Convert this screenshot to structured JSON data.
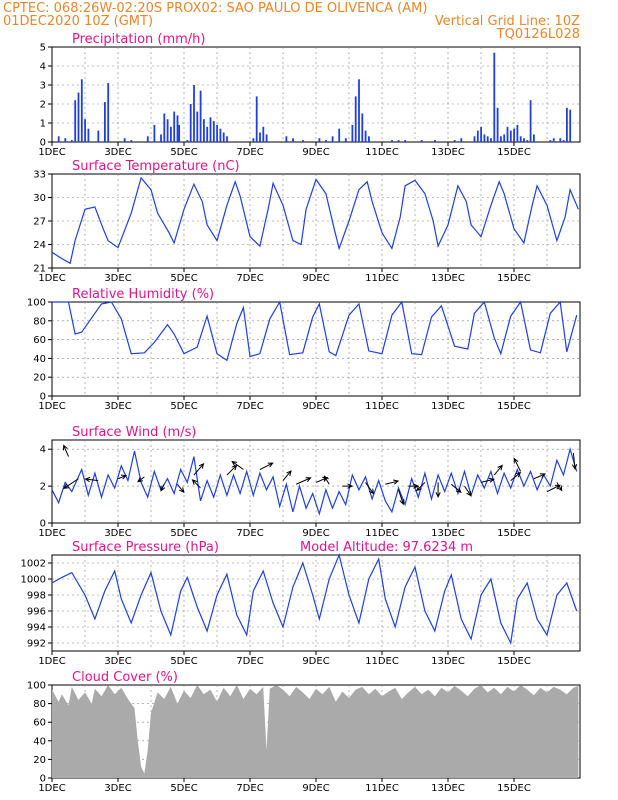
{
  "header": {
    "line1_left": "CPTEC:   068:26W-02:20S   PROX02: SAO PAULO DE OLIVENCA (AM)",
    "line2_left": "01DEC2020 10Z (GMT)",
    "line2_right": "Vertical Grid Line: 10Z",
    "line3_right": "TQ0126L028"
  },
  "colors": {
    "header": "#e8862a",
    "title": "#e0148c",
    "series": "#1f3fe0",
    "cloud": "#aaaaaa",
    "wind_arrow": "#000000"
  },
  "x_tick_labels": [
    "1DEC",
    "3DEC",
    "5DEC",
    "7DEC",
    "9DEC",
    "11DEC",
    "13DEC",
    "15DEC"
  ],
  "chart_data": [
    {
      "type": "bar",
      "title": "Precipitation (mm/h)",
      "ylim": [
        0,
        5
      ],
      "yticks": [
        0,
        1,
        2,
        3,
        4,
        5
      ],
      "x": [
        0.2,
        0.4,
        0.6,
        0.7,
        0.8,
        0.9,
        1.0,
        1.1,
        1.4,
        1.6,
        1.7,
        2.2,
        2.4,
        2.9,
        3.1,
        3.3,
        3.4,
        3.5,
        3.6,
        3.7,
        3.8,
        3.85,
        4.1,
        4.2,
        4.3,
        4.4,
        4.5,
        4.6,
        4.7,
        4.8,
        4.9,
        5.0,
        5.1,
        5.2,
        5.3,
        6.1,
        6.2,
        6.3,
        6.4,
        6.5,
        7.1,
        7.3,
        7.6,
        8.1,
        8.3,
        8.5,
        8.7,
        8.9,
        9.1,
        9.2,
        9.3,
        9.4,
        9.5,
        9.6,
        10.3,
        10.5,
        10.7,
        11.2,
        11.6,
        12.2,
        12.4,
        12.8,
        12.9,
        13.0,
        13.1,
        13.2,
        13.3,
        13.4,
        13.5,
        13.6,
        13.7,
        13.8,
        13.9,
        14.0,
        14.1,
        14.2,
        14.3,
        14.4,
        14.5,
        14.6,
        15.1,
        15.2,
        15.4,
        15.5,
        15.6,
        15.7
      ],
      "values": [
        0.3,
        0.2,
        0.1,
        2.2,
        2.6,
        3.3,
        1.2,
        0.7,
        0.6,
        2.1,
        3.1,
        0.2,
        0.1,
        0.3,
        0.9,
        0.4,
        1.5,
        1.2,
        0.8,
        1.6,
        1.4,
        0.9,
        0.1,
        2.0,
        3.0,
        1.6,
        2.7,
        1.2,
        0.8,
        1.3,
        1.1,
        0.9,
        0.7,
        0.5,
        0.3,
        0.2,
        2.4,
        0.5,
        0.8,
        0.4,
        0.3,
        0.2,
        0.1,
        0.2,
        0.1,
        0.3,
        0.7,
        0.2,
        0.9,
        2.4,
        3.3,
        1.5,
        0.6,
        0.3,
        0.1,
        0.1,
        0.1,
        0.1,
        0.1,
        0.1,
        0.2,
        0.3,
        0.6,
        0.8,
        0.4,
        0.3,
        0.2,
        4.7,
        1.8,
        0.3,
        0.4,
        0.8,
        0.6,
        0.7,
        0.9,
        0.3,
        0.2,
        0.1,
        2.2,
        0.4,
        0.1,
        0.2,
        0.2,
        0.1,
        1.8,
        1.7
      ]
    },
    {
      "type": "line",
      "title": "Surface Temperature (nC)",
      "ylim": [
        21,
        33
      ],
      "yticks": [
        21,
        24,
        27,
        30,
        33
      ],
      "x": [
        0.0,
        0.3,
        0.55,
        0.7,
        1.0,
        1.3,
        1.55,
        1.7,
        2.0,
        2.4,
        2.7,
        3.0,
        3.2,
        3.55,
        3.7,
        4.0,
        4.3,
        4.55,
        4.7,
        5.0,
        5.3,
        5.55,
        5.7,
        6.0,
        6.3,
        6.55,
        6.7,
        7.0,
        7.3,
        7.55,
        7.7,
        8.0,
        8.3,
        8.55,
        8.7,
        9.0,
        9.3,
        9.55,
        9.7,
        10.0,
        10.3,
        10.55,
        10.7,
        11.0,
        11.3,
        11.55,
        11.7,
        12.0,
        12.3,
        12.55,
        12.7,
        13.0,
        13.3,
        13.55,
        13.7,
        14.0,
        14.3,
        14.55,
        14.7,
        15.0,
        15.3,
        15.55,
        15.7,
        15.95
      ],
      "values": [
        23.0,
        22.2,
        21.6,
        24.5,
        28.5,
        28.8,
        26.0,
        24.5,
        23.6,
        28.0,
        32.5,
        31.0,
        28.0,
        25.5,
        24.2,
        28.5,
        31.7,
        29.5,
        26.5,
        24.5,
        29.0,
        32.0,
        30.2,
        25.0,
        23.8,
        28.5,
        31.8,
        29.0,
        24.5,
        24.0,
        28.5,
        32.3,
        30.5,
        26.0,
        23.5,
        27.0,
        31.0,
        32.0,
        29.5,
        25.5,
        23.5,
        27.5,
        31.5,
        32.2,
        30.5,
        27.0,
        23.8,
        26.5,
        31.5,
        29.5,
        26.5,
        25.0,
        29.0,
        32.0,
        30.5,
        26.0,
        24.2,
        29.0,
        31.5,
        29.0,
        24.5,
        27.5,
        31.0,
        28.5
      ]
    },
    {
      "type": "line",
      "title": "Relative Humidity (%)",
      "ylim": [
        0,
        100
      ],
      "yticks": [
        0,
        20,
        40,
        60,
        80,
        100
      ],
      "x": [
        0.0,
        0.5,
        0.7,
        0.9,
        1.1,
        1.5,
        1.8,
        2.1,
        2.4,
        2.8,
        3.1,
        3.5,
        3.7,
        4.0,
        4.4,
        4.7,
        5.0,
        5.3,
        5.6,
        5.8,
        6.0,
        6.3,
        6.6,
        6.9,
        7.2,
        7.6,
        7.9,
        8.1,
        8.4,
        8.6,
        9.0,
        9.3,
        9.6,
        10.0,
        10.3,
        10.6,
        10.9,
        11.2,
        11.5,
        11.8,
        12.2,
        12.6,
        12.8,
        13.1,
        13.4,
        13.6,
        13.9,
        14.2,
        14.5,
        14.8,
        15.1,
        15.4,
        15.6,
        15.9
      ],
      "values": [
        100,
        100,
        66,
        68,
        78,
        98,
        100,
        82,
        45,
        46,
        57,
        76,
        66,
        45,
        52,
        85,
        45,
        38,
        77,
        94,
        42,
        45,
        82,
        100,
        44,
        46,
        84,
        98,
        47,
        43,
        86,
        98,
        48,
        45,
        86,
        100,
        45,
        44,
        84,
        96,
        53,
        50,
        88,
        100,
        62,
        45,
        85,
        100,
        49,
        46,
        88,
        100,
        47,
        86
      ]
    },
    {
      "type": "line",
      "title": "Surface Wind (m/s)",
      "ylim": [
        0,
        4.5
      ],
      "yticks": [
        0,
        2,
        4
      ],
      "x": [
        0.0,
        0.2,
        0.4,
        0.6,
        0.9,
        1.1,
        1.3,
        1.5,
        1.7,
        1.9,
        2.1,
        2.3,
        2.5,
        2.7,
        2.9,
        3.1,
        3.3,
        3.5,
        3.7,
        3.9,
        4.1,
        4.3,
        4.5,
        4.7,
        4.9,
        5.1,
        5.3,
        5.5,
        5.7,
        5.9,
        6.1,
        6.3,
        6.5,
        6.7,
        6.9,
        7.1,
        7.3,
        7.5,
        7.7,
        7.9,
        8.1,
        8.3,
        8.5,
        8.7,
        8.9,
        9.1,
        9.3,
        9.5,
        9.7,
        9.9,
        10.1,
        10.3,
        10.5,
        10.7,
        10.9,
        11.1,
        11.3,
        11.5,
        11.7,
        11.9,
        12.1,
        12.3,
        12.5,
        12.7,
        12.9,
        13.1,
        13.3,
        13.5,
        13.7,
        13.9,
        14.1,
        14.3,
        14.5,
        14.7,
        14.9,
        15.1,
        15.3,
        15.5,
        15.7,
        15.9
      ],
      "values": [
        1.8,
        1.1,
        2.2,
        1.7,
        2.9,
        1.5,
        2.7,
        1.4,
        2.6,
        1.9,
        3.1,
        2.3,
        3.9,
        2.2,
        1.4,
        2.8,
        1.8,
        2.4,
        1.6,
        2.9,
        2.2,
        3.6,
        1.2,
        2.3,
        1.4,
        2.6,
        1.5,
        2.6,
        1.6,
        2.8,
        1.5,
        2.7,
        1.8,
        2.5,
        0.9,
        2.1,
        0.6,
        2.0,
        0.8,
        1.6,
        0.5,
        1.8,
        0.8,
        1.7,
        1.0,
        2.6,
        1.8,
        2.5,
        1.3,
        2.3,
        1.2,
        0.6,
        1.9,
        1.0,
        2.4,
        1.4,
        2.7,
        1.3,
        2.6,
        1.7,
        2.7,
        1.6,
        2.8,
        1.5,
        2.6,
        1.9,
        2.8,
        1.6,
        2.7,
        1.9,
        2.9,
        2.0,
        2.8,
        1.8,
        2.6,
        2.0,
        3.4,
        2.6,
        4.0,
        2.8
      ],
      "arrows": [
        {
          "x": 0.5,
          "y": 3.6,
          "u": -0.3,
          "v": 0.7
        },
        {
          "x": 0.8,
          "y": 2.4,
          "u": -0.9,
          "v": -0.6
        },
        {
          "x": 1.4,
          "y": 2.3,
          "u": -0.8,
          "v": 0.1
        },
        {
          "x": 2.0,
          "y": 2.4,
          "u": 0.5,
          "v": 0.2
        },
        {
          "x": 2.8,
          "y": 2.5,
          "u": -0.4,
          "v": -0.3
        },
        {
          "x": 3.4,
          "y": 2.1,
          "u": -0.2,
          "v": -0.4
        },
        {
          "x": 3.8,
          "y": 2.1,
          "u": 0.4,
          "v": -0.5
        },
        {
          "x": 4.3,
          "y": 2.6,
          "u": 0.6,
          "v": 0.7
        },
        {
          "x": 4.5,
          "y": 1.9,
          "u": -0.5,
          "v": 0.5
        },
        {
          "x": 5.3,
          "y": 2.6,
          "u": 0.6,
          "v": 0.6
        },
        {
          "x": 5.8,
          "y": 2.9,
          "u": -0.7,
          "v": 0.5
        },
        {
          "x": 6.3,
          "y": 2.9,
          "u": 0.8,
          "v": 0.4
        },
        {
          "x": 7.0,
          "y": 2.3,
          "u": 0.5,
          "v": 0.6
        },
        {
          "x": 7.4,
          "y": 2.1,
          "u": 0.9,
          "v": 0.4
        },
        {
          "x": 8.0,
          "y": 2.2,
          "u": 0.7,
          "v": 0.3
        },
        {
          "x": 8.4,
          "y": 2.1,
          "u": -0.3,
          "v": 0.5
        },
        {
          "x": 8.8,
          "y": 2.0,
          "u": 0.6,
          "v": 0.0
        },
        {
          "x": 9.5,
          "y": 2.2,
          "u": 0.5,
          "v": -0.7
        },
        {
          "x": 10.1,
          "y": 2.1,
          "u": 0.8,
          "v": 0.2
        },
        {
          "x": 10.5,
          "y": 1.8,
          "u": 0.3,
          "v": -0.9
        },
        {
          "x": 10.8,
          "y": 2.0,
          "u": 0.6,
          "v": 0.0
        },
        {
          "x": 11.3,
          "y": 2.2,
          "u": -0.5,
          "v": -0.5
        },
        {
          "x": 11.7,
          "y": 2.2,
          "u": 0.0,
          "v": -0.9
        },
        {
          "x": 12.1,
          "y": 2.1,
          "u": 0.6,
          "v": -0.5
        },
        {
          "x": 12.5,
          "y": 2.0,
          "u": 0.4,
          "v": -0.6
        },
        {
          "x": 13.0,
          "y": 2.2,
          "u": 0.8,
          "v": 0.2
        },
        {
          "x": 13.4,
          "y": 2.6,
          "u": 0.5,
          "v": 0.6
        },
        {
          "x": 13.9,
          "y": 2.3,
          "u": 0.6,
          "v": 0.5
        },
        {
          "x": 14.2,
          "y": 2.8,
          "u": -0.4,
          "v": 0.8
        },
        {
          "x": 14.6,
          "y": 2.4,
          "u": 0.7,
          "v": 0.3
        },
        {
          "x": 15.0,
          "y": 1.7,
          "u": 0.8,
          "v": 0.4
        },
        {
          "x": 15.3,
          "y": 2.2,
          "u": 0.3,
          "v": -0.5
        },
        {
          "x": 15.8,
          "y": 3.8,
          "u": 0.1,
          "v": -1.0
        }
      ]
    },
    {
      "type": "line",
      "title": "Surface Pressure (hPa)",
      "annotation": "Model Altitude: 97.6234 m",
      "ylim": [
        991,
        1003
      ],
      "yticks": [
        992,
        994,
        996,
        998,
        1000,
        1002
      ],
      "x": [
        0.0,
        0.3,
        0.6,
        1.0,
        1.3,
        1.6,
        1.9,
        2.1,
        2.4,
        2.7,
        3.0,
        3.3,
        3.6,
        3.9,
        4.1,
        4.4,
        4.7,
        5.0,
        5.3,
        5.6,
        5.9,
        6.1,
        6.4,
        6.7,
        7.0,
        7.3,
        7.6,
        7.9,
        8.1,
        8.4,
        8.7,
        9.0,
        9.3,
        9.6,
        9.9,
        10.1,
        10.4,
        10.7,
        11.0,
        11.3,
        11.6,
        11.9,
        12.1,
        12.4,
        12.7,
        13.0,
        13.3,
        13.6,
        13.9,
        14.1,
        14.4,
        14.7,
        15.0,
        15.3,
        15.6,
        15.9
      ],
      "values": [
        999.5,
        1000.2,
        1000.8,
        998.0,
        995.0,
        998.5,
        1001.0,
        997.5,
        994.5,
        998.0,
        1000.8,
        996.0,
        993.0,
        998.5,
        1000.2,
        996.5,
        993.5,
        998.0,
        1000.6,
        995.5,
        993.0,
        998.5,
        1001.0,
        997.0,
        994.0,
        999.0,
        1002.0,
        998.0,
        995.0,
        1000.0,
        1003.0,
        998.0,
        994.5,
        1000.0,
        1002.5,
        997.5,
        994.0,
        999.0,
        1001.5,
        996.0,
        993.5,
        998.5,
        1000.5,
        995.0,
        992.5,
        998.0,
        1000.0,
        994.5,
        992.0,
        997.5,
        999.5,
        995.0,
        993.0,
        998.0,
        999.5,
        996.0
      ]
    },
    {
      "type": "area",
      "title": "Cloud Cover (%)",
      "ylim": [
        0,
        100
      ],
      "yticks": [
        0,
        20,
        40,
        60,
        80,
        100
      ],
      "x": [
        0.0,
        0.2,
        0.3,
        0.5,
        0.6,
        0.8,
        1.0,
        1.2,
        1.3,
        1.5,
        1.7,
        1.9,
        2.1,
        2.3,
        2.5,
        2.6,
        2.7,
        2.8,
        2.9,
        3.0,
        3.2,
        3.4,
        3.6,
        3.8,
        4.0,
        4.2,
        4.4,
        4.6,
        4.8,
        5.0,
        5.2,
        5.4,
        5.6,
        5.8,
        6.0,
        6.2,
        6.4,
        6.5,
        6.6,
        6.8,
        7.0,
        7.2,
        7.4,
        7.6,
        7.8,
        8.0,
        8.2,
        8.4,
        8.6,
        8.8,
        9.0,
        9.2,
        9.4,
        9.6,
        9.8,
        10.0,
        10.2,
        10.4,
        10.6,
        10.8,
        11.0,
        11.2,
        11.4,
        11.6,
        11.8,
        12.0,
        12.2,
        12.4,
        12.6,
        12.8,
        13.0,
        13.2,
        13.4,
        13.6,
        13.8,
        14.0,
        14.2,
        14.4,
        14.6,
        14.8,
        15.0,
        15.2,
        15.4,
        15.6,
        15.8,
        15.95
      ],
      "values": [
        95,
        82,
        90,
        78,
        98,
        84,
        92,
        80,
        96,
        88,
        100,
        90,
        97,
        85,
        75,
        40,
        12,
        5,
        30,
        70,
        92,
        85,
        98,
        80,
        94,
        86,
        100,
        90,
        95,
        82,
        97,
        88,
        100,
        85,
        96,
        90,
        98,
        30,
        96,
        100,
        95,
        88,
        98,
        92,
        85,
        96,
        90,
        98,
        82,
        93,
        86,
        95,
        98,
        90,
        96,
        88,
        93,
        97,
        85,
        92,
        98,
        90,
        95,
        88,
        97,
        92,
        99,
        94,
        88,
        96,
        100,
        92,
        97,
        90,
        98,
        93,
        100,
        95,
        89,
        97,
        92,
        98,
        95,
        90,
        97,
        99
      ]
    }
  ]
}
